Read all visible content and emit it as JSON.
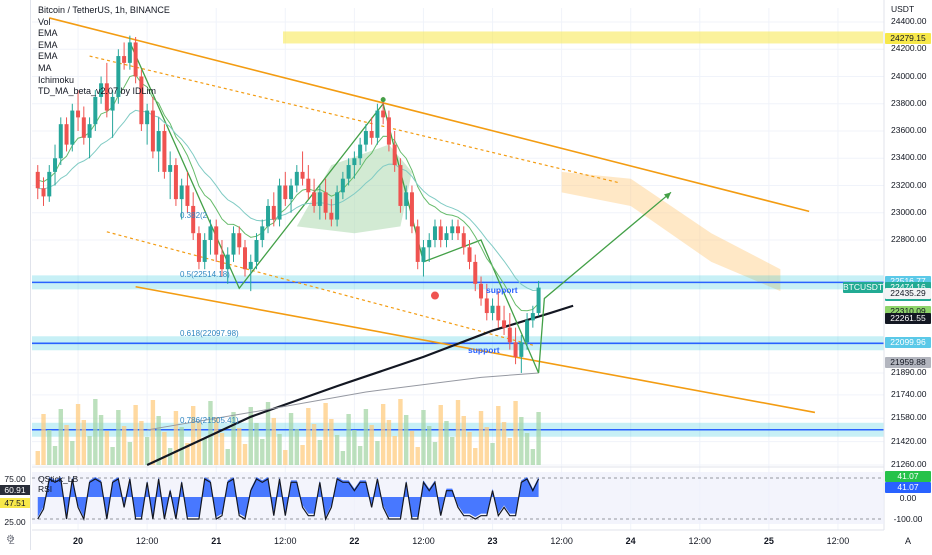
{
  "legend": {
    "title": "Bitcoin / TetherUS, 1h, BINANCE",
    "indicators": [
      "Vol",
      "EMA",
      "EMA",
      "EMA",
      "MA",
      "Ichimoku",
      "TD_MA_beta_v2.07 by IDLim"
    ]
  },
  "axis": {
    "currency": "USDT",
    "price_ticks": [
      {
        "label": "24400.00",
        "v": 24400
      },
      {
        "label": "24200.00",
        "v": 24200
      },
      {
        "label": "24000.00",
        "v": 24000
      },
      {
        "label": "23800.00",
        "v": 23800
      },
      {
        "label": "23600.00",
        "v": 23600
      },
      {
        "label": "23400.00",
        "v": 23400
      },
      {
        "label": "23200.00",
        "v": 23200
      },
      {
        "label": "23000.00",
        "v": 23000
      },
      {
        "label": "22800.00",
        "v": 22800
      },
      {
        "label": "21890.00",
        "v": 21890
      },
      {
        "label": "21740.00",
        "v": 21740
      },
      {
        "label": "21580.00",
        "v": 21580
      },
      {
        "label": "21420.00",
        "v": 21420
      },
      {
        "label": "21260.00",
        "v": 21260
      }
    ],
    "x_ticks": [
      {
        "label": "20",
        "t": 0
      },
      {
        "label": "12:00",
        "t": 12
      },
      {
        "label": "21",
        "t": 24
      },
      {
        "label": "12:00",
        "t": 36
      },
      {
        "label": "22",
        "t": 48
      },
      {
        "label": "12:00",
        "t": 60
      },
      {
        "label": "23",
        "t": 72
      },
      {
        "label": "12:00",
        "t": 84
      },
      {
        "label": "24",
        "t": 96
      },
      {
        "label": "12:00",
        "t": 108
      },
      {
        "label": "25",
        "t": 120
      },
      {
        "label": "12:00",
        "t": 132
      }
    ]
  },
  "price_tags": [
    {
      "label": "24279.15",
      "bg": "#f7e84a",
      "fg": "#131722",
      "v": 24279.15
    },
    {
      "label": "22516.77",
      "bg": "#5bc9e8",
      "fg": "#ffffff",
      "v": 22516.77
    },
    {
      "label": "22474.16",
      "bg": "#22ab94",
      "fg": "#ffffff",
      "v": 22474.16
    },
    {
      "label": "00:07",
      "bg": "#22ab94",
      "fg": "#ffffff",
      "v": 22420
    },
    {
      "label": "22435.29",
      "bg": "#f2f3f5",
      "fg": "#131722",
      "v": 22435.29
    },
    {
      "label": "22310.09",
      "bg": "#8fd46a",
      "fg": "#131722",
      "v": 22310.09
    },
    {
      "label": "22261.55",
      "bg": "#131722",
      "fg": "#ffffff",
      "v": 22261.55
    },
    {
      "label": "22099.96",
      "bg": "#5bc9e8",
      "fg": "#ffffff",
      "v": 22099.96
    },
    {
      "label": "21959.88",
      "bg": "#b2b5be",
      "fg": "#131722",
      "v": 21959.88
    }
  ],
  "symbol_tag": {
    "label": "BTCUSDT",
    "bg": "#22ab94",
    "fg": "#ffffff"
  },
  "annotations": {
    "support1": "support",
    "support2": "support",
    "fib_0382": "0.382(2",
    "fib_05": "0.5(22514.18)",
    "fib_0618": "0.618(22097.98)",
    "fib_0786": "0.786(21505.41)"
  },
  "oscillator": {
    "name": "QStick_LB",
    "sub": "RSI",
    "left_tags": [
      {
        "label": "75.00",
        "bg": "#ffffff",
        "v": 75
      },
      {
        "label": "60.91",
        "bg": "#2a2e39",
        "fg": "#ffffff",
        "v": 60.91
      },
      {
        "label": "47.51",
        "bg": "#f7e84a",
        "fg": "#131722",
        "v": 47.51
      },
      {
        "label": "25.00",
        "bg": "#ffffff",
        "v": 25
      }
    ],
    "right_ticks": [
      {
        "label": "41.07",
        "bg": "#26c24a",
        "fg": "#ffffff"
      },
      {
        "label": "41.07",
        "bg": "#2962ff",
        "fg": "#ffffff"
      },
      {
        "label": "0.00",
        "bg": "#ffffff",
        "fg": "#131722"
      },
      {
        "label": "-100.00",
        "bg": "#ffffff",
        "fg": "#131722"
      }
    ]
  },
  "colors": {
    "up": "#26a69a",
    "down": "#ef5350",
    "support_band": "#00bcd4",
    "channel": "#f39c12",
    "zigzag": "#2e7d32",
    "cloud_green": "#a5d6a7",
    "cloud_orange": "#ffcc80"
  },
  "chart_data": {
    "type": "candlestick",
    "symbol": "BTCUSDT",
    "interval": "1h",
    "exchange": "BINANCE",
    "ylim": [
      21260,
      24400
    ],
    "x_range_hours": [
      -8,
      140
    ],
    "candles_approx": [
      [
        -7,
        23300,
        23350,
        23100,
        23180
      ],
      [
        -6,
        23180,
        23260,
        23050,
        23120
      ],
      [
        -5,
        23120,
        23350,
        23080,
        23300
      ],
      [
        -4,
        23300,
        23500,
        23200,
        23400
      ],
      [
        -3,
        23400,
        23700,
        23350,
        23650
      ],
      [
        -2,
        23650,
        23700,
        23450,
        23500
      ],
      [
        -1,
        23500,
        23800,
        23450,
        23750
      ],
      [
        0,
        23750,
        23900,
        23600,
        23700
      ],
      [
        1,
        23700,
        23780,
        23500,
        23550
      ],
      [
        2,
        23550,
        23700,
        23400,
        23650
      ],
      [
        3,
        23650,
        23900,
        23600,
        23850
      ],
      [
        4,
        23850,
        24000,
        23800,
        23950
      ],
      [
        5,
        23950,
        24100,
        23700,
        23750
      ],
      [
        6,
        23750,
        23900,
        23550,
        23850
      ],
      [
        7,
        23850,
        24200,
        23800,
        24150
      ],
      [
        8,
        24150,
        24250,
        24050,
        24100
      ],
      [
        9,
        24100,
        24300,
        24050,
        24250
      ],
      [
        10,
        24250,
        24290,
        23950,
        24000
      ],
      [
        11,
        24000,
        24050,
        23600,
        23650
      ],
      [
        12,
        23650,
        23800,
        23500,
        23750
      ],
      [
        13,
        23750,
        23850,
        23400,
        23450
      ],
      [
        14,
        23450,
        23700,
        23300,
        23600
      ],
      [
        15,
        23600,
        23650,
        23250,
        23300
      ],
      [
        16,
        23300,
        23450,
        23100,
        23350
      ],
      [
        17,
        23350,
        23400,
        23050,
        23100
      ],
      [
        18,
        23100,
        23250,
        22950,
        23200
      ],
      [
        19,
        23200,
        23300,
        23000,
        23050
      ],
      [
        20,
        23050,
        23150,
        22800,
        22850
      ],
      [
        21,
        22850,
        22900,
        22600,
        22650
      ],
      [
        22,
        22650,
        22850,
        22600,
        22800
      ],
      [
        23,
        22800,
        22950,
        22700,
        22900
      ],
      [
        24,
        22900,
        22950,
        22650,
        22700
      ],
      [
        25,
        22700,
        22800,
        22550,
        22600
      ],
      [
        26,
        22600,
        22750,
        22500,
        22700
      ],
      [
        27,
        22700,
        22900,
        22650,
        22850
      ],
      [
        28,
        22850,
        22900,
        22700,
        22750
      ],
      [
        29,
        22750,
        22800,
        22550,
        22600
      ],
      [
        30,
        22600,
        22700,
        22450,
        22650
      ],
      [
        31,
        22650,
        22850,
        22600,
        22800
      ],
      [
        32,
        22800,
        22950,
        22750,
        22900
      ],
      [
        33,
        22900,
        23100,
        22850,
        23050
      ],
      [
        34,
        23050,
        23150,
        22900,
        22950
      ],
      [
        35,
        22950,
        23250,
        22900,
        23200
      ],
      [
        36,
        23200,
        23300,
        23050,
        23100
      ],
      [
        37,
        23100,
        23250,
        23000,
        23200
      ],
      [
        38,
        23200,
        23350,
        23150,
        23300
      ],
      [
        39,
        23300,
        23450,
        23200,
        23250
      ],
      [
        40,
        23250,
        23350,
        23100,
        23150
      ],
      [
        41,
        23150,
        23250,
        23000,
        23050
      ],
      [
        42,
        23050,
        23200,
        22950,
        23150
      ],
      [
        43,
        23150,
        23250,
        22950,
        23000
      ],
      [
        44,
        23000,
        23100,
        22900,
        22950
      ],
      [
        45,
        22950,
        23200,
        22900,
        23150
      ],
      [
        46,
        23150,
        23300,
        23100,
        23250
      ],
      [
        47,
        23250,
        23400,
        23200,
        23350
      ],
      [
        48,
        23350,
        23450,
        23250,
        23400
      ],
      [
        49,
        23400,
        23550,
        23350,
        23500
      ],
      [
        50,
        23500,
        23650,
        23450,
        23600
      ],
      [
        51,
        23600,
        23700,
        23500,
        23550
      ],
      [
        52,
        23550,
        23800,
        23500,
        23750
      ],
      [
        53,
        23750,
        23850,
        23650,
        23700
      ],
      [
        54,
        23700,
        23750,
        23450,
        23500
      ],
      [
        55,
        23500,
        23600,
        23300,
        23350
      ],
      [
        56,
        23350,
        23400,
        23000,
        23050
      ],
      [
        57,
        23050,
        23200,
        22950,
        23150
      ],
      [
        58,
        23150,
        23200,
        22850,
        22900
      ],
      [
        59,
        22900,
        22950,
        22600,
        22650
      ],
      [
        60,
        22650,
        22800,
        22550,
        22750
      ],
      [
        61,
        22750,
        22850,
        22650,
        22800
      ],
      [
        62,
        22800,
        22950,
        22750,
        22900
      ],
      [
        63,
        22900,
        22950,
        22750,
        22800
      ],
      [
        64,
        22800,
        22900,
        22750,
        22850
      ],
      [
        65,
        22850,
        22950,
        22800,
        22900
      ],
      [
        66,
        22900,
        22950,
        22800,
        22850
      ],
      [
        67,
        22850,
        22900,
        22700,
        22750
      ],
      [
        68,
        22750,
        22800,
        22600,
        22650
      ],
      [
        69,
        22650,
        22700,
        22450,
        22500
      ],
      [
        70,
        22500,
        22550,
        22350,
        22400
      ],
      [
        71,
        22400,
        22500,
        22250,
        22300
      ],
      [
        72,
        22300,
        22400,
        22250,
        22350
      ],
      [
        73,
        22350,
        22450,
        22200,
        22250
      ],
      [
        74,
        22250,
        22350,
        22150,
        22200
      ],
      [
        75,
        22200,
        22300,
        22050,
        22100
      ],
      [
        76,
        22100,
        22200,
        21950,
        22000
      ],
      [
        77,
        22000,
        22150,
        21890,
        22100
      ],
      [
        78,
        22100,
        22300,
        22050,
        22250
      ],
      [
        79,
        22250,
        22350,
        22200,
        22300
      ],
      [
        80,
        22300,
        22520,
        22280,
        22474
      ]
    ]
  }
}
